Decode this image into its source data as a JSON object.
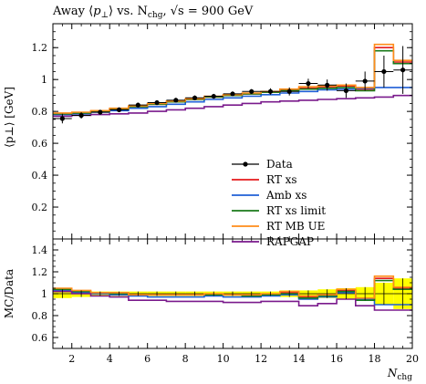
{
  "title": {
    "prefix": "Away ⟨",
    "p": "p",
    "perp": "⊥",
    "mid": "⟩ vs. N",
    "sub": "chg",
    "rest": ", √s = 900 GeV"
  },
  "ylabel_top": "⟨p⊥⟩ [GeV]",
  "ylabel_bottom": "MC/Data",
  "xlabel": "Nchg",
  "colors": {
    "Data": "#000000",
    "RT xs": "#e41a1c",
    "Amb xs": "#1f5fd6",
    "RT xs limit": "#1a7a1a",
    "RT MB UE": "#ff8c1a",
    "RAPGAP": "#7a1a8c",
    "band": "#ffff00"
  },
  "chart_data": [
    {
      "type": "line",
      "panel": "main",
      "title": "Away ⟨p⊥⟩ vs. Nchg, √s = 900 GeV",
      "xlabel": "Nchg",
      "ylabel": "⟨p⊥⟩ [GeV]",
      "xlim": [
        1,
        20
      ],
      "ylim": [
        0,
        1.35
      ],
      "xticks": [
        2,
        4,
        6,
        8,
        10,
        12,
        14,
        16,
        18,
        20
      ],
      "yticks": [
        0.2,
        0.4,
        0.6,
        0.8,
        1.0,
        1.2
      ],
      "ytick_labels": [
        "0.2",
        "0.4",
        "0.6",
        "0.8",
        "1",
        "1.2"
      ],
      "bin_edges": [
        1,
        2,
        3,
        4,
        5,
        6,
        7,
        8,
        9,
        10,
        11,
        12,
        13,
        14,
        15,
        16,
        17,
        18,
        19,
        20
      ],
      "legend": "center-right",
      "data": {
        "name": "Data",
        "x": [
          1.5,
          2.5,
          3.5,
          4.5,
          5.5,
          6.5,
          7.5,
          8.5,
          9.5,
          10.5,
          11.5,
          12.5,
          13.5,
          14.5,
          15.5,
          16.5,
          17.5,
          18.5,
          19.5
        ],
        "y": [
          0.755,
          0.775,
          0.795,
          0.81,
          0.84,
          0.855,
          0.87,
          0.885,
          0.895,
          0.91,
          0.925,
          0.925,
          0.925,
          0.975,
          0.965,
          0.93,
          0.99,
          1.05,
          1.06
        ],
        "yerr": [
          0.03,
          0.02,
          0.015,
          0.015,
          0.015,
          0.015,
          0.015,
          0.015,
          0.015,
          0.015,
          0.015,
          0.02,
          0.025,
          0.03,
          0.035,
          0.045,
          0.06,
          0.1,
          0.15
        ]
      },
      "series": [
        {
          "name": "RT xs",
          "values": [
            0.785,
            0.79,
            0.8,
            0.815,
            0.83,
            0.845,
            0.86,
            0.875,
            0.89,
            0.9,
            0.91,
            0.92,
            0.935,
            0.945,
            0.95,
            0.96,
            0.94,
            1.2,
            1.11
          ]
        },
        {
          "name": "Amb xs",
          "values": [
            0.78,
            0.785,
            0.795,
            0.805,
            0.82,
            0.83,
            0.845,
            0.86,
            0.875,
            0.885,
            0.895,
            0.905,
            0.915,
            0.925,
            0.935,
            0.94,
            0.945,
            0.95,
            0.95
          ]
        },
        {
          "name": "RT xs limit",
          "values": [
            0.785,
            0.79,
            0.8,
            0.815,
            0.83,
            0.845,
            0.86,
            0.875,
            0.89,
            0.9,
            0.91,
            0.92,
            0.93,
            0.94,
            0.945,
            0.95,
            0.93,
            1.18,
            1.1
          ]
        },
        {
          "name": "RT MB UE",
          "values": [
            0.79,
            0.795,
            0.805,
            0.82,
            0.835,
            0.85,
            0.865,
            0.88,
            0.895,
            0.905,
            0.915,
            0.925,
            0.94,
            0.955,
            0.96,
            0.965,
            0.95,
            1.22,
            1.12
          ]
        },
        {
          "name": "RAPGAP",
          "values": [
            0.77,
            0.775,
            0.78,
            0.785,
            0.79,
            0.8,
            0.81,
            0.82,
            0.83,
            0.84,
            0.85,
            0.86,
            0.865,
            0.87,
            0.875,
            0.88,
            0.885,
            0.89,
            0.9
          ]
        }
      ]
    },
    {
      "type": "line",
      "panel": "ratio",
      "xlabel": "Nchg",
      "ylabel": "MC/Data",
      "xlim": [
        1,
        20
      ],
      "ylim": [
        0.5,
        1.5
      ],
      "xticks": [
        2,
        4,
        6,
        8,
        10,
        12,
        14,
        16,
        18,
        20
      ],
      "yticks": [
        0.6,
        0.8,
        1.0,
        1.2,
        1.4
      ],
      "ytick_labels": [
        "0.6",
        "0.8",
        "1",
        "1.2",
        "1.4"
      ],
      "bin_edges": [
        1,
        2,
        3,
        4,
        5,
        6,
        7,
        8,
        9,
        10,
        11,
        12,
        13,
        14,
        15,
        16,
        17,
        18,
        19,
        20
      ],
      "band_halfwidth": [
        0.04,
        0.03,
        0.02,
        0.02,
        0.02,
        0.02,
        0.02,
        0.02,
        0.02,
        0.02,
        0.02,
        0.02,
        0.03,
        0.03,
        0.04,
        0.05,
        0.06,
        0.1,
        0.14
      ],
      "series": [
        {
          "name": "RT xs",
          "values": [
            1.04,
            1.02,
            1.01,
            1.0,
            0.99,
            0.99,
            0.99,
            0.99,
            0.99,
            0.99,
            0.98,
            0.99,
            1.01,
            0.97,
            0.98,
            1.03,
            0.95,
            1.14,
            1.05
          ]
        },
        {
          "name": "Amb xs",
          "values": [
            1.03,
            1.01,
            1.0,
            0.99,
            0.98,
            0.97,
            0.97,
            0.97,
            0.98,
            0.97,
            0.97,
            0.98,
            0.99,
            0.95,
            0.97,
            1.01,
            0.95,
            0.9,
            0.9
          ]
        },
        {
          "name": "RT xs limit",
          "values": [
            1.04,
            1.02,
            1.01,
            1.0,
            0.99,
            0.99,
            0.99,
            0.99,
            0.99,
            0.99,
            0.98,
            0.99,
            1.0,
            0.96,
            0.98,
            1.02,
            0.94,
            1.12,
            1.04
          ]
        },
        {
          "name": "RT MB UE",
          "values": [
            1.05,
            1.03,
            1.01,
            1.01,
            0.99,
            0.99,
            0.99,
            0.99,
            1.0,
            0.99,
            0.99,
            1.0,
            1.02,
            0.98,
            0.99,
            1.04,
            0.96,
            1.16,
            1.06
          ]
        },
        {
          "name": "RAPGAP",
          "values": [
            1.02,
            1.0,
            0.98,
            0.97,
            0.94,
            0.94,
            0.93,
            0.93,
            0.93,
            0.92,
            0.92,
            0.93,
            0.93,
            0.89,
            0.91,
            0.95,
            0.89,
            0.85,
            0.85
          ]
        }
      ]
    }
  ]
}
